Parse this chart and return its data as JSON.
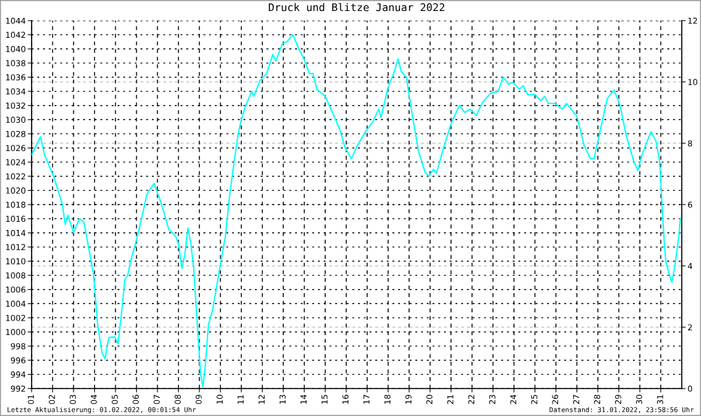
{
  "chart_data": {
    "type": "line",
    "title": "Druck und Blitze Januar 2022",
    "annotations": [
      "Letzte Aktualisierung: 01.02.2022, 00:01:54 Uhr",
      "Datenstand: 31.01.2022, 23:58:56 Uhr"
    ],
    "series": [
      {
        "color": "#00ffff",
        "x": [
          1.0,
          1.42,
          1.62,
          2.05,
          2.47,
          2.6,
          2.73,
          3.0,
          3.28,
          3.5,
          3.96,
          4.15,
          4.36,
          4.5,
          4.68,
          4.96,
          5.12,
          5.3,
          5.45,
          5.58,
          5.72,
          6.0,
          6.32,
          6.5,
          6.84,
          7.2,
          7.54,
          7.87,
          8.0,
          8.17,
          8.31,
          8.45,
          8.59,
          8.73,
          8.9,
          9.06,
          9.17,
          9.29,
          9.43,
          9.62,
          9.8,
          10.0,
          10.24,
          10.43,
          10.63,
          10.85,
          11.0,
          11.21,
          11.5,
          11.6,
          11.88,
          12.2,
          12.5,
          12.65,
          12.95,
          13.17,
          13.46,
          13.77,
          14.0,
          14.24,
          14.42,
          14.6,
          15.0,
          15.35,
          15.71,
          15.95,
          16.25,
          16.56,
          16.92,
          17.27,
          17.55,
          17.66,
          17.99,
          18.26,
          18.48,
          18.62,
          18.87,
          19.16,
          19.45,
          19.76,
          19.94,
          20.16,
          20.3,
          20.59,
          21.01,
          21.4,
          21.66,
          21.91,
          22.21,
          22.51,
          22.88,
          23.24,
          23.49,
          23.74,
          23.94,
          24.26,
          24.44,
          24.66,
          24.98,
          25.27,
          25.46,
          25.64,
          25.95,
          26.32,
          26.51,
          26.74,
          27.0,
          27.35,
          27.64,
          27.82,
          28.1,
          28.45,
          28.77,
          29.06,
          29.35,
          29.69,
          29.91,
          30.1,
          30.53,
          30.77,
          30.95,
          31.06,
          31.17,
          31.24,
          31.42,
          31.53,
          31.68,
          31.86,
          31.93
        ],
        "values": [
          1025,
          1027.6,
          1025,
          1022,
          1018,
          1015.2,
          1016.5,
          1014,
          1016,
          1015.5,
          1008,
          1001,
          997,
          996.2,
          999.2,
          999.3,
          998.3,
          1003,
          1007.5,
          1008,
          1010,
          1013,
          1017,
          1019.5,
          1021,
          1018,
          1014.5,
          1013.5,
          1012.5,
          1009,
          1011,
          1014.7,
          1012.5,
          1009,
          1001,
          994,
          992.2,
          995.5,
          1001,
          1003,
          1006,
          1009.5,
          1013.5,
          1019,
          1023.5,
          1028,
          1030,
          1032,
          1034,
          1033.3,
          1035.5,
          1036.5,
          1039.2,
          1038.3,
          1040.7,
          1041,
          1042,
          1039.8,
          1038.5,
          1036.5,
          1036.5,
          1034.3,
          1033.3,
          1031,
          1028.5,
          1026,
          1024.5,
          1026.5,
          1028.3,
          1029.7,
          1031.5,
          1030.3,
          1034.5,
          1036.5,
          1038.6,
          1036.8,
          1036,
          1030.5,
          1025.5,
          1022.6,
          1022,
          1023,
          1022.4,
          1025.5,
          1029.5,
          1032,
          1031,
          1031.5,
          1030.6,
          1032.5,
          1033.7,
          1034,
          1036,
          1035,
          1035.3,
          1034.3,
          1034.8,
          1033.5,
          1033.6,
          1032.7,
          1033.3,
          1032.3,
          1032.3,
          1031.5,
          1032.3,
          1031.4,
          1030.5,
          1026.3,
          1024.5,
          1024.5,
          1028.3,
          1033,
          1034.2,
          1032,
          1027.8,
          1024.3,
          1022.8,
          1025,
          1028.3,
          1027,
          1024,
          1018,
          1012.5,
          1010,
          1008,
          1007,
          1009.5,
          1013.5,
          1016
        ]
      }
    ],
    "xlim": [
      1,
      32
    ],
    "xticks": [
      {
        "value": 1,
        "label": "01"
      },
      {
        "value": 2,
        "label": "02"
      },
      {
        "value": 3,
        "label": "03"
      },
      {
        "value": 4,
        "label": "04"
      },
      {
        "value": 5,
        "label": "05"
      },
      {
        "value": 6,
        "label": "06"
      },
      {
        "value": 7,
        "label": "07"
      },
      {
        "value": 8,
        "label": "08"
      },
      {
        "value": 9,
        "label": "09"
      },
      10,
      11,
      12,
      13,
      14,
      15,
      16,
      17,
      18,
      19,
      20,
      21,
      22,
      23,
      24,
      25,
      26,
      27,
      28,
      29,
      30,
      31
    ],
    "ylim": [
      992,
      1044
    ],
    "yticks": [
      992,
      994,
      996,
      998,
      1000,
      1002,
      1004,
      1006,
      1008,
      1010,
      1012,
      1014,
      1016,
      1018,
      1020,
      1022,
      1024,
      1026,
      1028,
      1030,
      1032,
      1034,
      1036,
      1038,
      1040,
      1042,
      1044
    ],
    "y2lim": [
      0,
      12
    ],
    "y2ticks": [
      0,
      2,
      4,
      6,
      8,
      10,
      12
    ],
    "grid": true,
    "line_style": "solid",
    "marker": "none"
  }
}
